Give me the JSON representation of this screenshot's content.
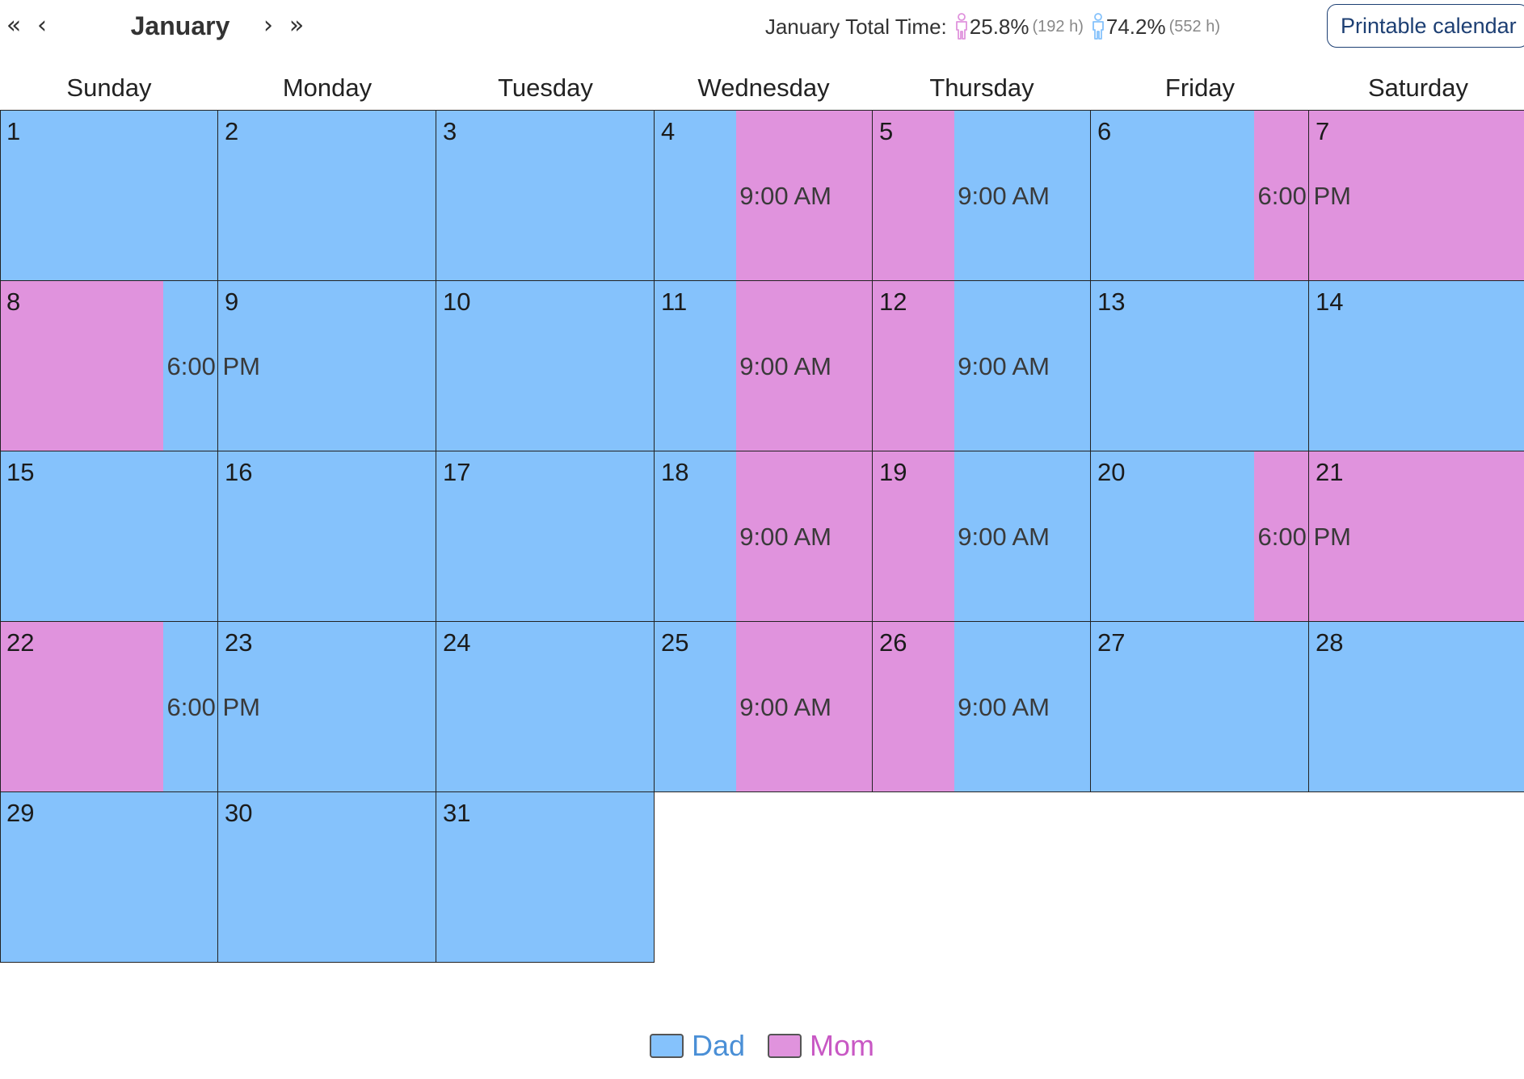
{
  "nav": {
    "prev_year_glyph": "«",
    "prev_month_glyph": "‹",
    "month_title": "January",
    "next_month_glyph": "›",
    "next_year_glyph": "»"
  },
  "summary": {
    "label": "January Total Time:",
    "mom": {
      "percent": "25.8%",
      "hours": "(192 h)",
      "color": "#e093dd"
    },
    "dad": {
      "percent": "74.2%",
      "hours": "(552 h)",
      "color": "#85c2fc"
    }
  },
  "print_label": "Printable calendar",
  "weekdays": [
    "Sunday",
    "Monday",
    "Tuesday",
    "Wednesday",
    "Thursday",
    "Friday",
    "Saturday"
  ],
  "colors": {
    "dad": "#85c2fc",
    "mom": "#e093dd"
  },
  "days": [
    {
      "day": "1",
      "segments": [
        [
          "dad",
          1
        ]
      ]
    },
    {
      "day": "2",
      "segments": [
        [
          "dad",
          1
        ]
      ]
    },
    {
      "day": "3",
      "segments": [
        [
          "dad",
          1
        ]
      ]
    },
    {
      "day": "4",
      "segments": [
        [
          "dad",
          0.375
        ],
        [
          "mom",
          0.625
        ]
      ],
      "exchange": "9:00 AM"
    },
    {
      "day": "5",
      "segments": [
        [
          "mom",
          0.375
        ],
        [
          "dad",
          0.625
        ]
      ],
      "exchange": "9:00 AM"
    },
    {
      "day": "6",
      "segments": [
        [
          "dad",
          0.75
        ],
        [
          "mom",
          0.25
        ]
      ],
      "exchange": "6:00 PM"
    },
    {
      "day": "7",
      "segments": [
        [
          "mom",
          1
        ]
      ]
    },
    {
      "day": "8",
      "segments": [
        [
          "mom",
          0.75
        ],
        [
          "dad",
          0.25
        ]
      ],
      "exchange": "6:00 PM"
    },
    {
      "day": "9",
      "segments": [
        [
          "dad",
          1
        ]
      ]
    },
    {
      "day": "10",
      "segments": [
        [
          "dad",
          1
        ]
      ]
    },
    {
      "day": "11",
      "segments": [
        [
          "dad",
          0.375
        ],
        [
          "mom",
          0.625
        ]
      ],
      "exchange": "9:00 AM"
    },
    {
      "day": "12",
      "segments": [
        [
          "mom",
          0.375
        ],
        [
          "dad",
          0.625
        ]
      ],
      "exchange": "9:00 AM"
    },
    {
      "day": "13",
      "segments": [
        [
          "dad",
          1
        ]
      ]
    },
    {
      "day": "14",
      "segments": [
        [
          "dad",
          1
        ]
      ]
    },
    {
      "day": "15",
      "segments": [
        [
          "dad",
          1
        ]
      ]
    },
    {
      "day": "16",
      "segments": [
        [
          "dad",
          1
        ]
      ]
    },
    {
      "day": "17",
      "segments": [
        [
          "dad",
          1
        ]
      ]
    },
    {
      "day": "18",
      "segments": [
        [
          "dad",
          0.375
        ],
        [
          "mom",
          0.625
        ]
      ],
      "exchange": "9:00 AM"
    },
    {
      "day": "19",
      "segments": [
        [
          "mom",
          0.375
        ],
        [
          "dad",
          0.625
        ]
      ],
      "exchange": "9:00 AM"
    },
    {
      "day": "20",
      "segments": [
        [
          "dad",
          0.75
        ],
        [
          "mom",
          0.25
        ]
      ],
      "exchange": "6:00 PM"
    },
    {
      "day": "21",
      "segments": [
        [
          "mom",
          1
        ]
      ]
    },
    {
      "day": "22",
      "segments": [
        [
          "mom",
          0.75
        ],
        [
          "dad",
          0.25
        ]
      ],
      "exchange": "6:00 PM"
    },
    {
      "day": "23",
      "segments": [
        [
          "dad",
          1
        ]
      ]
    },
    {
      "day": "24",
      "segments": [
        [
          "dad",
          1
        ]
      ]
    },
    {
      "day": "25",
      "segments": [
        [
          "dad",
          0.375
        ],
        [
          "mom",
          0.625
        ]
      ],
      "exchange": "9:00 AM"
    },
    {
      "day": "26",
      "segments": [
        [
          "mom",
          0.375
        ],
        [
          "dad",
          0.625
        ]
      ],
      "exchange": "9:00 AM"
    },
    {
      "day": "27",
      "segments": [
        [
          "dad",
          1
        ]
      ]
    },
    {
      "day": "28",
      "segments": [
        [
          "dad",
          1
        ]
      ]
    },
    {
      "day": "29",
      "segments": [
        [
          "dad",
          1
        ]
      ]
    },
    {
      "day": "30",
      "segments": [
        [
          "dad",
          1
        ]
      ]
    },
    {
      "day": "31",
      "segments": [
        [
          "dad",
          1
        ]
      ]
    }
  ],
  "legend": {
    "dad_label": "Dad",
    "mom_label": "Mom"
  }
}
